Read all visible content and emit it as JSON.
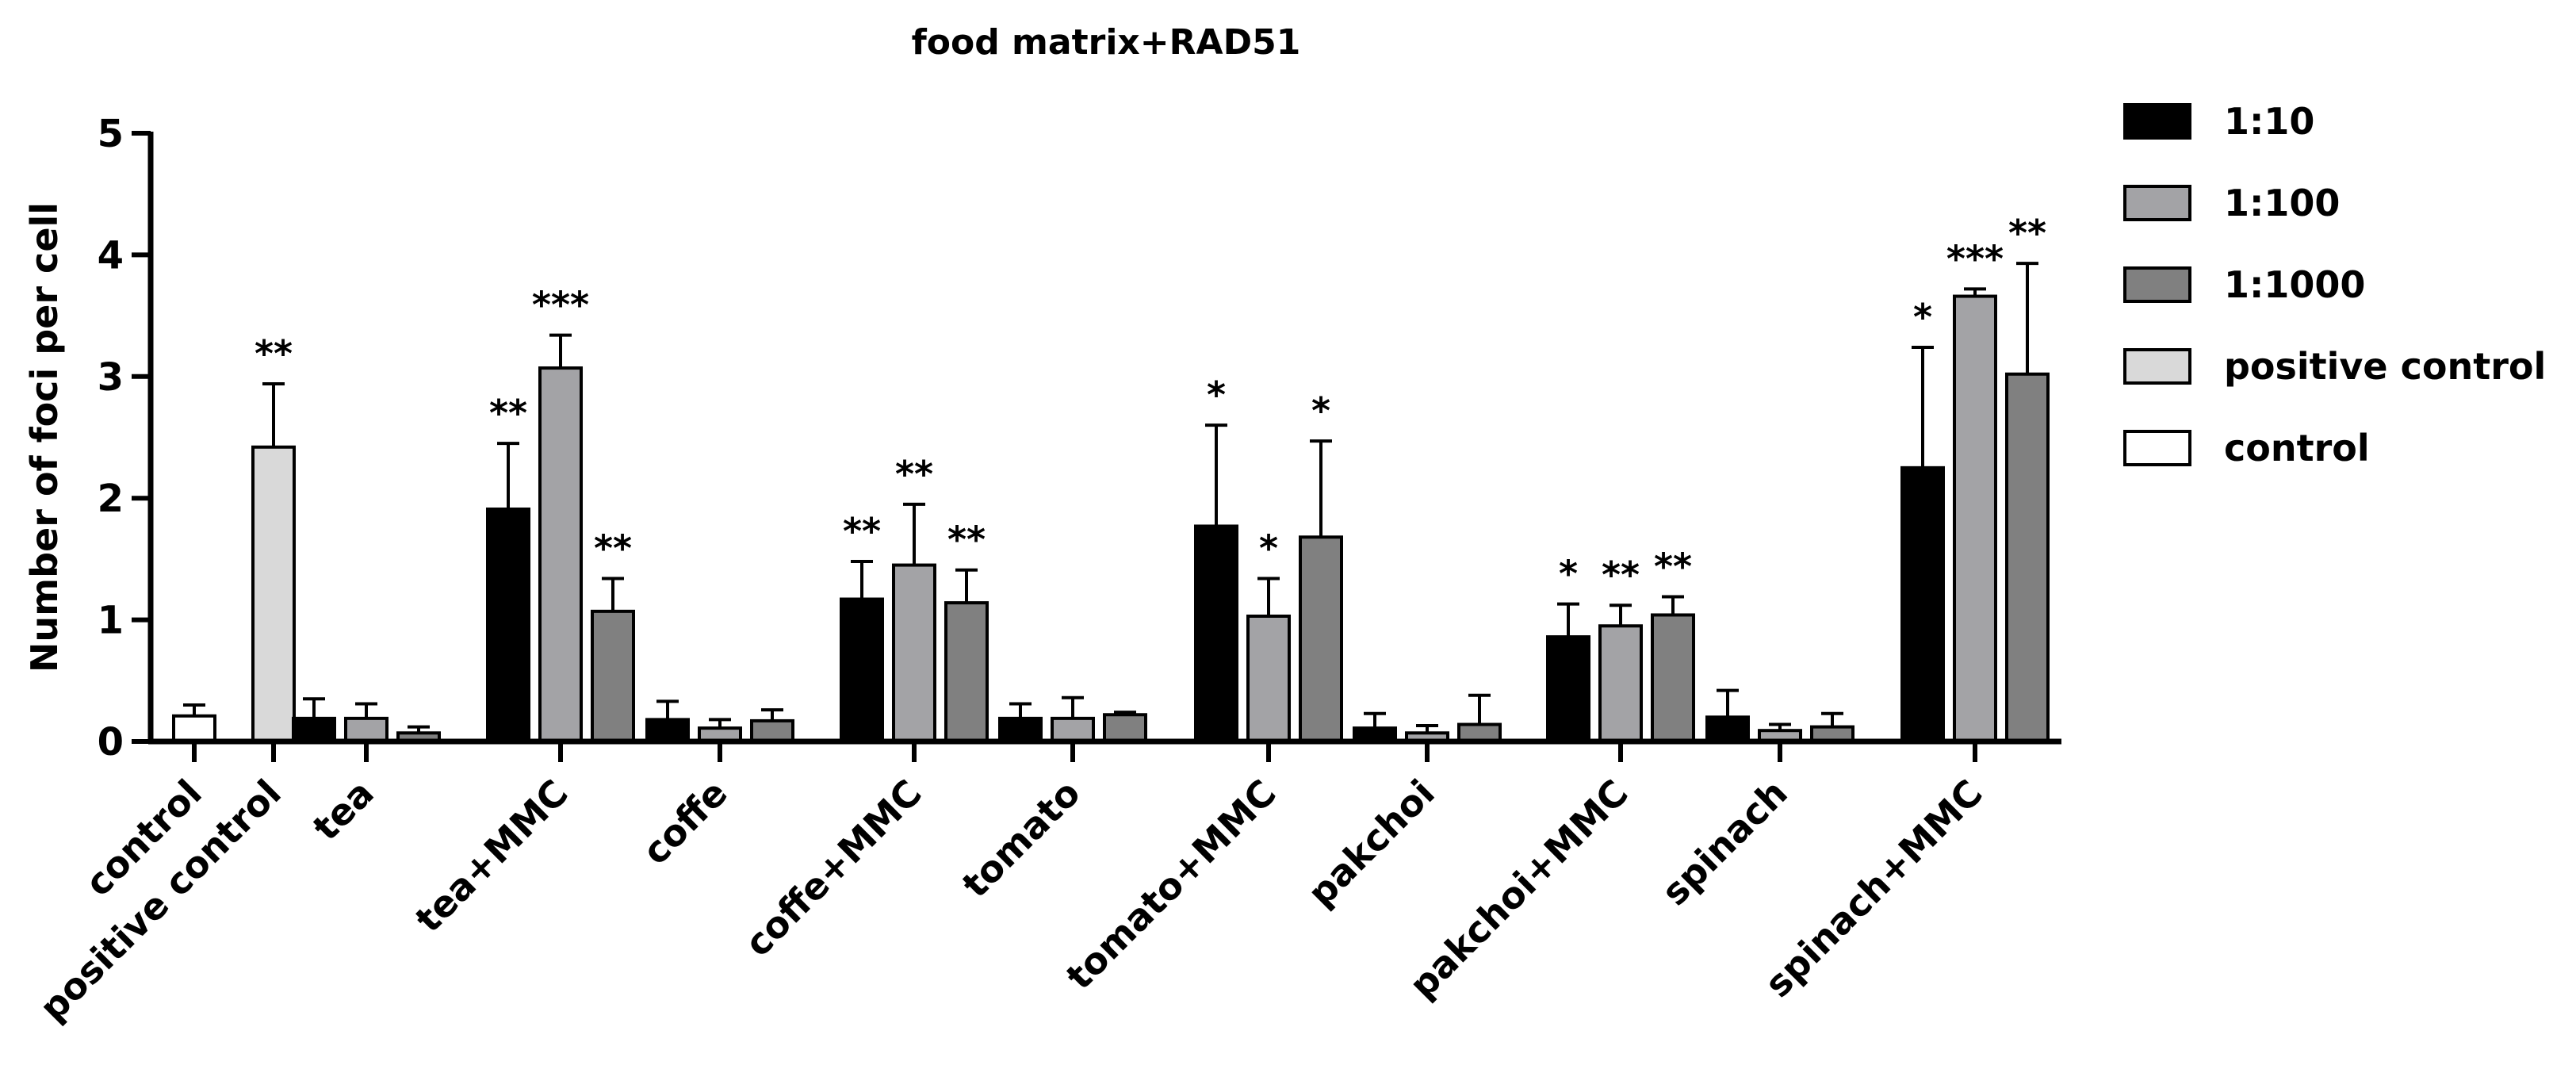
{
  "chart_data": {
    "type": "bar",
    "title": "food matrix+RAD51",
    "xlabel": "",
    "ylabel": "Number of foci per cell",
    "ylim": [
      0,
      5
    ],
    "yticks": [
      0,
      1,
      2,
      3,
      4,
      5
    ],
    "grid": false,
    "legend_position": "right",
    "legend": [
      {
        "name": "1:10",
        "color": "#000000"
      },
      {
        "name": "1:100",
        "color": "#a3a3a6"
      },
      {
        "name": "1:1000",
        "color": "#808080"
      },
      {
        "name": "positive control",
        "color": "#d9d9d9"
      },
      {
        "name": "control",
        "color": "#ffffff"
      }
    ],
    "categories": [
      "control",
      "positive control",
      "tea",
      "tea+MMC",
      "coffe",
      "coffe+MMC",
      "tomato",
      "tomato+MMC",
      "pakchoi",
      "pakchoi+MMC",
      "spinach",
      "spinach+MMC"
    ],
    "groups": [
      {
        "category": "control",
        "bars": [
          {
            "series": "control",
            "value": 0.21,
            "error": 0.09,
            "sig": ""
          }
        ]
      },
      {
        "category": "positive control",
        "bars": [
          {
            "series": "positive control",
            "value": 2.42,
            "error": 0.52,
            "sig": "**"
          }
        ]
      },
      {
        "category": "tea",
        "bars": [
          {
            "series": "1:10",
            "value": 0.19,
            "error": 0.16,
            "sig": ""
          },
          {
            "series": "1:100",
            "value": 0.19,
            "error": 0.12,
            "sig": ""
          },
          {
            "series": "1:1000",
            "value": 0.07,
            "error": 0.05,
            "sig": ""
          }
        ]
      },
      {
        "category": "tea+MMC",
        "bars": [
          {
            "series": "1:10",
            "value": 1.91,
            "error": 0.54,
            "sig": "**"
          },
          {
            "series": "1:100",
            "value": 3.07,
            "error": 0.27,
            "sig": "***"
          },
          {
            "series": "1:1000",
            "value": 1.07,
            "error": 0.27,
            "sig": "**"
          }
        ]
      },
      {
        "category": "coffe",
        "bars": [
          {
            "series": "1:10",
            "value": 0.18,
            "error": 0.15,
            "sig": ""
          },
          {
            "series": "1:100",
            "value": 0.11,
            "error": 0.07,
            "sig": ""
          },
          {
            "series": "1:1000",
            "value": 0.17,
            "error": 0.09,
            "sig": ""
          }
        ]
      },
      {
        "category": "coffe+MMC",
        "bars": [
          {
            "series": "1:10",
            "value": 1.17,
            "error": 0.31,
            "sig": "**"
          },
          {
            "series": "1:100",
            "value": 1.45,
            "error": 0.5,
            "sig": "**"
          },
          {
            "series": "1:1000",
            "value": 1.14,
            "error": 0.27,
            "sig": "**"
          }
        ]
      },
      {
        "category": "tomato",
        "bars": [
          {
            "series": "1:10",
            "value": 0.19,
            "error": 0.12,
            "sig": ""
          },
          {
            "series": "1:100",
            "value": 0.19,
            "error": 0.17,
            "sig": ""
          },
          {
            "series": "1:1000",
            "value": 0.22,
            "error": 0.02,
            "sig": ""
          }
        ]
      },
      {
        "category": "tomato+MMC",
        "bars": [
          {
            "series": "1:10",
            "value": 1.77,
            "error": 0.83,
            "sig": "*"
          },
          {
            "series": "1:100",
            "value": 1.03,
            "error": 0.31,
            "sig": "*"
          },
          {
            "series": "1:1000",
            "value": 1.68,
            "error": 0.79,
            "sig": "*"
          }
        ]
      },
      {
        "category": "pakchoi",
        "bars": [
          {
            "series": "1:10",
            "value": 0.11,
            "error": 0.12,
            "sig": ""
          },
          {
            "series": "1:100",
            "value": 0.07,
            "error": 0.06,
            "sig": ""
          },
          {
            "series": "1:1000",
            "value": 0.14,
            "error": 0.24,
            "sig": ""
          }
        ]
      },
      {
        "category": "pakchoi+MMC",
        "bars": [
          {
            "series": "1:10",
            "value": 0.86,
            "error": 0.27,
            "sig": "*"
          },
          {
            "series": "1:100",
            "value": 0.95,
            "error": 0.17,
            "sig": "**"
          },
          {
            "series": "1:1000",
            "value": 1.04,
            "error": 0.15,
            "sig": "**"
          }
        ]
      },
      {
        "category": "spinach",
        "bars": [
          {
            "series": "1:10",
            "value": 0.2,
            "error": 0.22,
            "sig": ""
          },
          {
            "series": "1:100",
            "value": 0.09,
            "error": 0.05,
            "sig": ""
          },
          {
            "series": "1:1000",
            "value": 0.12,
            "error": 0.11,
            "sig": ""
          }
        ]
      },
      {
        "category": "spinach+MMC",
        "bars": [
          {
            "series": "1:10",
            "value": 2.25,
            "error": 0.99,
            "sig": "*"
          },
          {
            "series": "1:100",
            "value": 3.66,
            "error": 0.06,
            "sig": "***"
          },
          {
            "series": "1:1000",
            "value": 3.02,
            "error": 0.91,
            "sig": "**"
          }
        ]
      }
    ]
  }
}
